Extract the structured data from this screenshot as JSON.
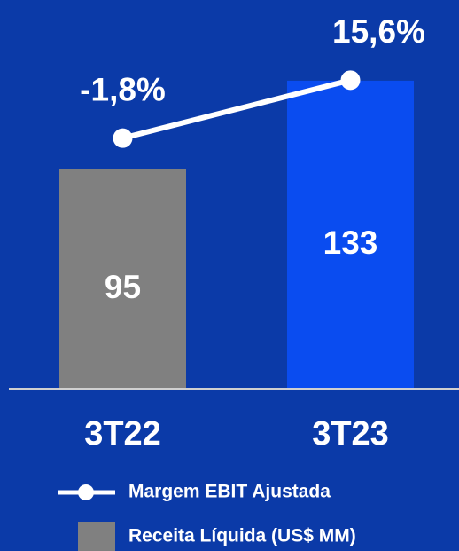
{
  "chart_data": {
    "type": "bar",
    "categories": [
      "3T22",
      "3T23"
    ],
    "ylim": [
      0,
      164
    ],
    "y2lim": [
      -77,
      37
    ],
    "series": [
      {
        "name": "Receita Líquida (US$ MM)",
        "type": "bar",
        "color": "#808080",
        "colors": [
          "#808080",
          "#0a4cf0"
        ],
        "values": [
          95,
          133
        ]
      },
      {
        "name": "Margem EBIT Ajustada",
        "type": "line",
        "axis": "y2",
        "color": "#ffffff",
        "values": [
          -1.8,
          15.6
        ],
        "value_labels": [
          "-1,8%",
          "15,6%"
        ]
      }
    ]
  }
}
